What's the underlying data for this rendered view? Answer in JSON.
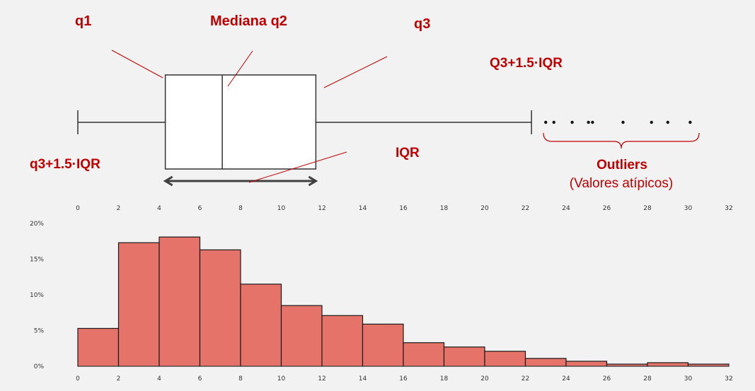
{
  "annotations": {
    "q1": "q1",
    "median": "Mediana q2",
    "q3": "q3",
    "upper_fence": "Q3+1.5·IQR",
    "lower_fence": "q3+1.5·IQR",
    "iqr": "IQR",
    "outliers": "Outliers",
    "outliers_sub": "(Valores atípicos)"
  },
  "colors": {
    "annotation": "#c00000",
    "bar_fill": "#e5736a",
    "bar_stroke": "#1a1a1a",
    "background": "#f2f2f2"
  },
  "chart_data": [
    {
      "type": "box",
      "xlim": [
        0,
        32
      ],
      "x_ticks": [
        "0",
        "2",
        "4",
        "6",
        "8",
        "10",
        "12",
        "14",
        "16",
        "18",
        "20",
        "22",
        "24",
        "26",
        "28",
        "30",
        "32"
      ],
      "whisker_low": 0,
      "q1": 4.3,
      "median": 7.1,
      "q3": 11.7,
      "whisker_high": 22.3,
      "outliers": [
        23.0,
        23.4,
        24.3,
        25.1,
        25.3,
        26.8,
        28.2,
        29.0,
        30.1
      ]
    },
    {
      "type": "bar",
      "xlim": [
        0,
        32
      ],
      "ylim": [
        0,
        20
      ],
      "x_ticks": [
        "0",
        "2",
        "4",
        "6",
        "8",
        "10",
        "12",
        "14",
        "16",
        "18",
        "20",
        "22",
        "24",
        "26",
        "28",
        "30",
        "32"
      ],
      "y_ticks": [
        "0%",
        "5%",
        "10%",
        "15%",
        "20%"
      ],
      "bin_width": 2,
      "bin_starts": [
        0,
        2,
        4,
        6,
        8,
        10,
        12,
        14,
        16,
        18,
        20,
        22,
        24,
        26,
        28,
        30
      ],
      "values": [
        5.3,
        17.3,
        18.1,
        16.3,
        11.5,
        8.5,
        7.1,
        5.9,
        3.3,
        2.7,
        2.1,
        1.1,
        0.7,
        0.3,
        0.5,
        0.3
      ]
    }
  ]
}
